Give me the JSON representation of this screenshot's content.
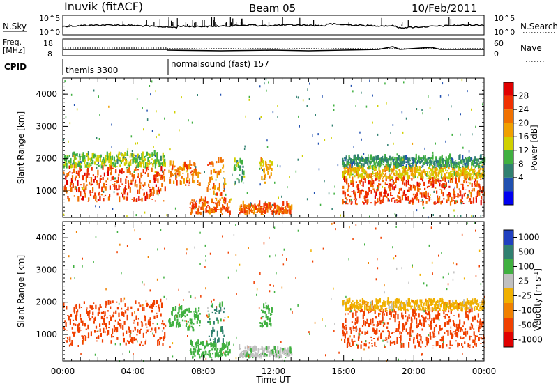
{
  "header": {
    "station": "Inuvik (fitACF)",
    "beam": "Beam 05",
    "date": "10/Feb/2011"
  },
  "noise_panel": {
    "left_label": "N.Sky",
    "right_label": "N.Search",
    "left_ticks": [
      "10^5",
      "10^0"
    ],
    "right_ticks": [
      "10^5",
      "10^0"
    ]
  },
  "freq_panel": {
    "left_label_1": "Freq.",
    "left_label_2": "[MHz]",
    "right_label": "Nave",
    "left_ticks": [
      "18",
      "8"
    ],
    "right_ticks": [
      "60",
      "0"
    ]
  },
  "cpid_panel": {
    "label": "CPID",
    "modes": [
      {
        "name": "themis 3300",
        "start_hour": 0
      },
      {
        "name": "normalsound (fast) 157",
        "start_hour": 6
      }
    ]
  },
  "chart_data": [
    {
      "type": "heatmap",
      "name": "power",
      "xlabel": "Time UT",
      "ylabel": "Slant Range [km]",
      "xlim": [
        0,
        24
      ],
      "ylim": [
        180,
        4500
      ],
      "y_ticks": [
        1000,
        2000,
        3000,
        4000
      ],
      "colorbar_label": "Power [dB]",
      "colorbar_ticks": [
        "28",
        "24",
        "20",
        "16",
        "12",
        "8",
        "4"
      ],
      "colors": [
        "#0000f0",
        "#2050b0",
        "#308070",
        "#40b040",
        "#d0d000",
        "#f0a000",
        "#f07000",
        "#f03000",
        "#e00000"
      ],
      "regions": [
        {
          "t0": 0.0,
          "t1": 5.8,
          "r0": 650,
          "r1": 1700,
          "v": 26
        },
        {
          "t0": 0.0,
          "t1": 5.8,
          "r0": 1700,
          "r1": 2100,
          "v": 14
        },
        {
          "t0": 6.0,
          "t1": 7.8,
          "r0": 1150,
          "r1": 1800,
          "v": 22
        },
        {
          "t0": 7.2,
          "t1": 9.5,
          "r0": 250,
          "r1": 700,
          "v": 24
        },
        {
          "t0": 8.2,
          "t1": 9.2,
          "r0": 700,
          "r1": 1900,
          "v": 22
        },
        {
          "t0": 9.7,
          "t1": 10.3,
          "r0": 1200,
          "r1": 1900,
          "v": 12
        },
        {
          "t0": 11.2,
          "t1": 11.9,
          "r0": 1200,
          "r1": 1900,
          "v": 20
        },
        {
          "t0": 10.0,
          "t1": 13.0,
          "r0": 250,
          "r1": 550,
          "v": 24
        },
        {
          "t0": 15.9,
          "t1": 24.0,
          "r0": 550,
          "r1": 1350,
          "v": 26
        },
        {
          "t0": 15.9,
          "t1": 24.0,
          "r0": 1350,
          "r1": 1700,
          "v": 18
        },
        {
          "t0": 15.9,
          "t1": 24.0,
          "r0": 1700,
          "r1": 2000,
          "v": 10
        }
      ]
    },
    {
      "type": "heatmap",
      "name": "velocity",
      "xlabel": "Time UT",
      "ylabel": "Slant Range [km]",
      "xlim": [
        0,
        24
      ],
      "ylim": [
        180,
        4500
      ],
      "y_ticks": [
        1000,
        2000,
        3000,
        4000
      ],
      "x_ticks": [
        "00:00",
        "04:00",
        "08:00",
        "12:00",
        "16:00",
        "20:00",
        "00:00"
      ],
      "colorbar_label": "Velocity [m s^-1]",
      "colorbar_ticks": [
        "1000",
        "500",
        "100",
        "25",
        "-25",
        "-100",
        "-500",
        "-1000"
      ],
      "colors": [
        "#2040c0",
        "#308070",
        "#40b040",
        "#c0c0c0",
        "#f0b000",
        "#f08000",
        "#f04000",
        "#e00000"
      ],
      "regions": [
        {
          "t0": 0.0,
          "t1": 5.8,
          "r0": 650,
          "r1": 2000,
          "v": -150
        },
        {
          "t0": 6.0,
          "t1": 7.8,
          "r0": 1100,
          "r1": 1800,
          "v": 150
        },
        {
          "t0": 7.2,
          "t1": 9.5,
          "r0": 250,
          "r1": 700,
          "v": 150
        },
        {
          "t0": 8.2,
          "t1": 9.2,
          "r0": 700,
          "r1": 1900,
          "v": 600
        },
        {
          "t0": 11.2,
          "t1": 11.9,
          "r0": 1200,
          "r1": 1900,
          "v": 150
        },
        {
          "t0": 10.0,
          "t1": 13.0,
          "r0": 250,
          "r1": 550,
          "v": 80
        },
        {
          "t0": 15.9,
          "t1": 24.0,
          "r0": 550,
          "r1": 1700,
          "v": -200
        },
        {
          "t0": 15.9,
          "t1": 24.0,
          "r0": 1700,
          "r1": 2000,
          "v": 0
        }
      ]
    }
  ]
}
